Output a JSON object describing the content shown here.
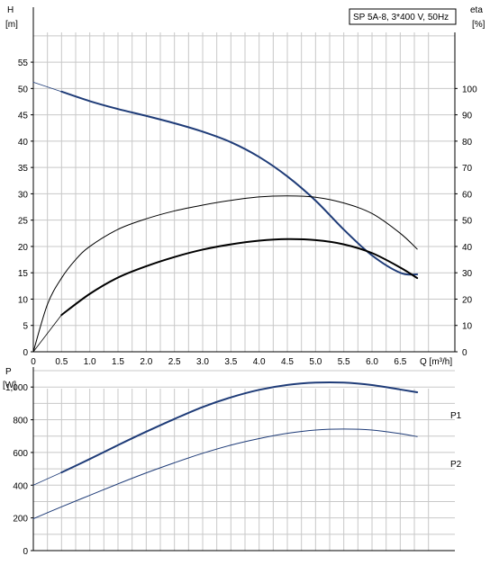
{
  "chart_data": [
    {
      "type": "line",
      "panel": "head-eta",
      "title": "SP 5A-8, 3*400 V, 50Hz",
      "xlabel": "Q [m³/h]",
      "ylabel_left_name": "H",
      "ylabel_left_unit": "[m]",
      "ylabel_right_name": "eta",
      "ylabel_right_unit": "[%]",
      "xlim": [
        0,
        7.0
      ],
      "ylim_left": [
        0,
        60
      ],
      "ylim_right": [
        0,
        120
      ],
      "x_ticks": [
        "0",
        "0.5",
        "1.0",
        "1.5",
        "2.0",
        "2.5",
        "3.0",
        "3.5",
        "4.0",
        "4.5",
        "5.0",
        "5.5",
        "6.0",
        "6.5"
      ],
      "y_ticks_left": [
        "0",
        "5",
        "10",
        "15",
        "20",
        "25",
        "30",
        "35",
        "40",
        "45",
        "50",
        "55"
      ],
      "y_ticks_right": [
        "0",
        "10",
        "20",
        "30",
        "40",
        "50",
        "60",
        "70",
        "80",
        "90",
        "100"
      ],
      "grid": true,
      "series": [
        {
          "axis": "left",
          "color": "#1f3c78",
          "width": 2,
          "x": [
            0.5,
            1.0,
            1.5,
            2.0,
            2.5,
            3.0,
            3.5,
            4.0,
            4.5,
            5.0,
            5.5,
            6.0,
            6.5,
            6.8
          ],
          "y": [
            49.4,
            47.6,
            46.1,
            44.8,
            43.4,
            41.8,
            39.8,
            37.0,
            33.3,
            28.7,
            23.2,
            18.3,
            15.0,
            14.7
          ]
        },
        {
          "axis": "left",
          "color": "#1f3c78",
          "width": 0.8,
          "x": [
            0,
            0.5
          ],
          "y": [
            51.2,
            49.4
          ]
        },
        {
          "axis": "right",
          "color": "#000000",
          "width": 1,
          "x": [
            0,
            0.25,
            0.5,
            0.75,
            1.0,
            1.5,
            2.0,
            2.5,
            3.0,
            3.5,
            4.0,
            4.5,
            5.0,
            5.5,
            6.0,
            6.5,
            6.8
          ],
          "y": [
            0,
            18,
            28,
            35,
            40,
            46.5,
            50.5,
            53.5,
            55.7,
            57.5,
            58.8,
            59.2,
            58.7,
            56.5,
            52.5,
            45.0,
            39.0
          ]
        },
        {
          "axis": "right",
          "color": "#000000",
          "width": 2,
          "x": [
            0.5,
            1.0,
            1.5,
            2.0,
            2.5,
            3.0,
            3.5,
            4.0,
            4.5,
            5.0,
            5.5,
            6.0,
            6.5,
            6.8
          ],
          "y": [
            14,
            22,
            28.2,
            32.5,
            36,
            38.8,
            40.8,
            42.2,
            42.8,
            42.4,
            40.8,
            37.5,
            32.0,
            28.0
          ]
        },
        {
          "axis": "right",
          "color": "#000000",
          "width": 0.8,
          "x": [
            0,
            0.5
          ],
          "y": [
            0,
            14
          ]
        }
      ]
    },
    {
      "type": "line",
      "panel": "power",
      "ylabel_name": "P",
      "ylabel_unit": "[W]",
      "xlim": [
        0,
        7.0
      ],
      "ylim": [
        0,
        1200
      ],
      "y_ticks": [
        "0",
        "200",
        "400",
        "600",
        "800",
        "1,000"
      ],
      "grid": true,
      "series": [
        {
          "name": "P1",
          "color": "#1f3c78",
          "width": 2,
          "x": [
            0.5,
            1.0,
            1.5,
            2.0,
            2.5,
            3.0,
            3.5,
            4.0,
            4.5,
            5.0,
            5.5,
            6.0,
            6.5,
            6.8
          ],
          "y": [
            478,
            560,
            645,
            727,
            805,
            878,
            937,
            983,
            1013,
            1027,
            1027,
            1012,
            985,
            968
          ]
        },
        {
          "name": "",
          "color": "#1f3c78",
          "width": 0.8,
          "x": [
            0,
            0.5
          ],
          "y": [
            400,
            478
          ]
        },
        {
          "name": "P2",
          "color": "#1f3c78",
          "width": 1,
          "x": [
            0,
            0.5,
            1.0,
            1.5,
            2.0,
            2.5,
            3.0,
            3.5,
            4.0,
            4.5,
            5.0,
            5.5,
            6.0,
            6.5,
            6.8
          ],
          "y": [
            195,
            268,
            338,
            408,
            475,
            537,
            595,
            645,
            685,
            717,
            737,
            743,
            737,
            715,
            697
          ]
        }
      ]
    }
  ]
}
